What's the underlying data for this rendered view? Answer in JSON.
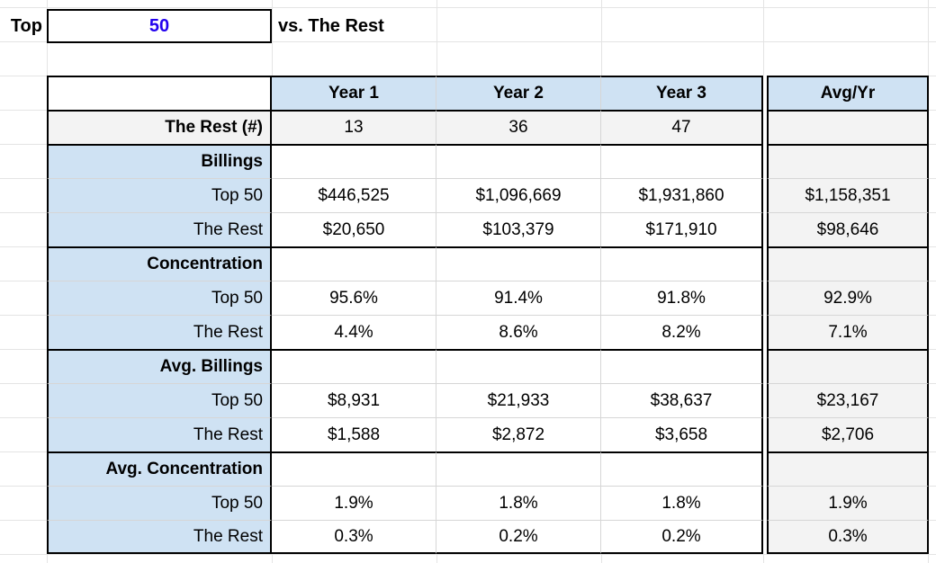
{
  "controls": {
    "top_label": "Top",
    "top_value": "50",
    "vs_label": "vs. The Rest"
  },
  "colors": {
    "header_fill": "#cfe2f3",
    "label_fill": "#cfe2f3",
    "alt_fill": "#f3f3f3",
    "input_text_color": "#2200ee",
    "grid_line": "#e4e4e4",
    "inner_line": "#d6d6d6",
    "border": "#000000"
  },
  "table": {
    "columns": [
      "",
      "Year 1",
      "Year 2",
      "Year 3",
      "Avg/Yr"
    ],
    "rows": [
      {
        "type": "count",
        "label": "The Rest (#)",
        "values": [
          "13",
          "36",
          "47",
          ""
        ]
      },
      {
        "type": "section",
        "label": "Billings",
        "values": [
          "",
          "",
          "",
          ""
        ]
      },
      {
        "type": "data",
        "label": "Top 50",
        "values": [
          "$446,525",
          "$1,096,669",
          "$1,931,860",
          "$1,158,351"
        ]
      },
      {
        "type": "data",
        "label": "The Rest",
        "values": [
          "$20,650",
          "$103,379",
          "$171,910",
          "$98,646"
        ]
      },
      {
        "type": "section",
        "label": "Concentration",
        "values": [
          "",
          "",
          "",
          ""
        ]
      },
      {
        "type": "data",
        "label": "Top 50",
        "values": [
          "95.6%",
          "91.4%",
          "91.8%",
          "92.9%"
        ]
      },
      {
        "type": "data",
        "label": "The Rest",
        "values": [
          "4.4%",
          "8.6%",
          "8.2%",
          "7.1%"
        ]
      },
      {
        "type": "section",
        "label": "Avg. Billings",
        "values": [
          "",
          "",
          "",
          ""
        ]
      },
      {
        "type": "data",
        "label": "Top 50",
        "values": [
          "$8,931",
          "$21,933",
          "$38,637",
          "$23,167"
        ]
      },
      {
        "type": "data",
        "label": "The Rest",
        "values": [
          "$1,588",
          "$2,872",
          "$3,658",
          "$2,706"
        ]
      },
      {
        "type": "section",
        "label": "Avg. Concentration",
        "values": [
          "",
          "",
          "",
          ""
        ]
      },
      {
        "type": "data",
        "label": "Top 50",
        "values": [
          "1.9%",
          "1.8%",
          "1.8%",
          "1.9%"
        ]
      },
      {
        "type": "data",
        "label": "The Rest",
        "values": [
          "0.3%",
          "0.2%",
          "0.2%",
          "0.3%"
        ]
      }
    ]
  }
}
